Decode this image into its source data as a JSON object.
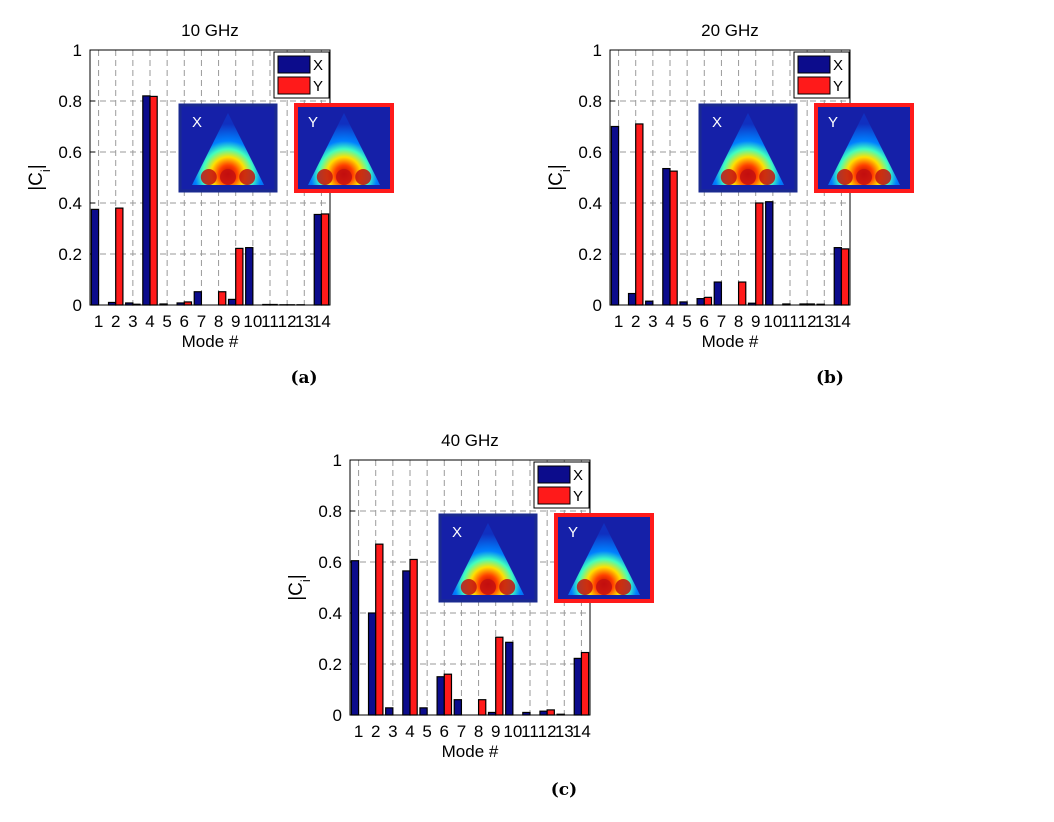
{
  "colors": {
    "x": "#0c0c8c",
    "y": "#ff1a1a",
    "grid": "#9a9a9a"
  },
  "chart_data": [
    {
      "type": "bar",
      "title": "10 GHz",
      "caption": "(a)",
      "xlabel": "Mode #",
      "ylabel_main": "|C",
      "ylabel_sub": "i",
      "ylabel_end": "|",
      "ylim": [
        0,
        1
      ],
      "yticks": [
        "0",
        "0.2",
        "0.4",
        "0.6",
        "0.8",
        "1"
      ],
      "categories": [
        "1",
        "2",
        "3",
        "4",
        "5",
        "6",
        "7",
        "8",
        "9",
        "10",
        "11",
        "12",
        "13",
        "14"
      ],
      "series": [
        {
          "name": "X",
          "values": [
            0.375,
            0.01,
            0.008,
            0.82,
            0.004,
            0.008,
            0.052,
            0.0,
            0.022,
            0.225,
            0.002,
            0.001,
            0.001,
            0.355
          ]
        },
        {
          "name": "Y",
          "values": [
            0.0,
            0.38,
            0.003,
            0.818,
            0.0,
            0.012,
            0.0,
            0.052,
            0.222,
            0.0,
            0.002,
            0.001,
            0.0,
            0.357
          ]
        }
      ],
      "legend": "top-right",
      "grid": true,
      "insets": [
        {
          "label": "X",
          "color": "blue"
        },
        {
          "label": "Y",
          "color": "red"
        }
      ]
    },
    {
      "type": "bar",
      "title": "20 GHz",
      "caption": "(b)",
      "xlabel": "Mode #",
      "ylabel_main": "|C",
      "ylabel_sub": "i",
      "ylabel_end": "|",
      "ylim": [
        0,
        1
      ],
      "yticks": [
        "0",
        "0.2",
        "0.4",
        "0.6",
        "0.8",
        "1"
      ],
      "categories": [
        "1",
        "2",
        "3",
        "4",
        "5",
        "6",
        "7",
        "8",
        "9",
        "10",
        "11",
        "12",
        "13",
        "14"
      ],
      "series": [
        {
          "name": "X",
          "values": [
            0.7,
            0.045,
            0.015,
            0.535,
            0.012,
            0.025,
            0.09,
            0.0,
            0.007,
            0.405,
            0.004,
            0.004,
            0.003,
            0.225
          ]
        },
        {
          "name": "Y",
          "values": [
            0.0,
            0.71,
            0.0,
            0.525,
            0.0,
            0.03,
            0.0,
            0.09,
            0.4,
            0.0,
            0.0,
            0.004,
            0.0,
            0.22
          ]
        }
      ],
      "legend": "top-right",
      "grid": true,
      "insets": [
        {
          "label": "X",
          "color": "blue"
        },
        {
          "label": "Y",
          "color": "red"
        }
      ]
    },
    {
      "type": "bar",
      "title": "40 GHz",
      "caption": "(c)",
      "xlabel": "Mode #",
      "ylabel_main": "|C",
      "ylabel_sub": "i",
      "ylabel_end": "|",
      "ylim": [
        0,
        1
      ],
      "yticks": [
        "0",
        "0.2",
        "0.4",
        "0.6",
        "0.8",
        "1"
      ],
      "categories": [
        "1",
        "2",
        "3",
        "4",
        "5",
        "6",
        "7",
        "8",
        "9",
        "10",
        "11",
        "12",
        "13",
        "14"
      ],
      "series": [
        {
          "name": "X",
          "values": [
            0.605,
            0.4,
            0.028,
            0.565,
            0.028,
            0.15,
            0.06,
            0.0,
            0.01,
            0.285,
            0.01,
            0.015,
            0.003,
            0.222
          ]
        },
        {
          "name": "Y",
          "values": [
            0.0,
            0.67,
            0.0,
            0.61,
            0.0,
            0.16,
            0.0,
            0.06,
            0.305,
            0.0,
            0.0,
            0.02,
            0.0,
            0.245
          ]
        }
      ],
      "legend": "top-right",
      "grid": true,
      "insets": [
        {
          "label": "X",
          "color": "blue"
        },
        {
          "label": "Y",
          "color": "red"
        }
      ]
    }
  ]
}
